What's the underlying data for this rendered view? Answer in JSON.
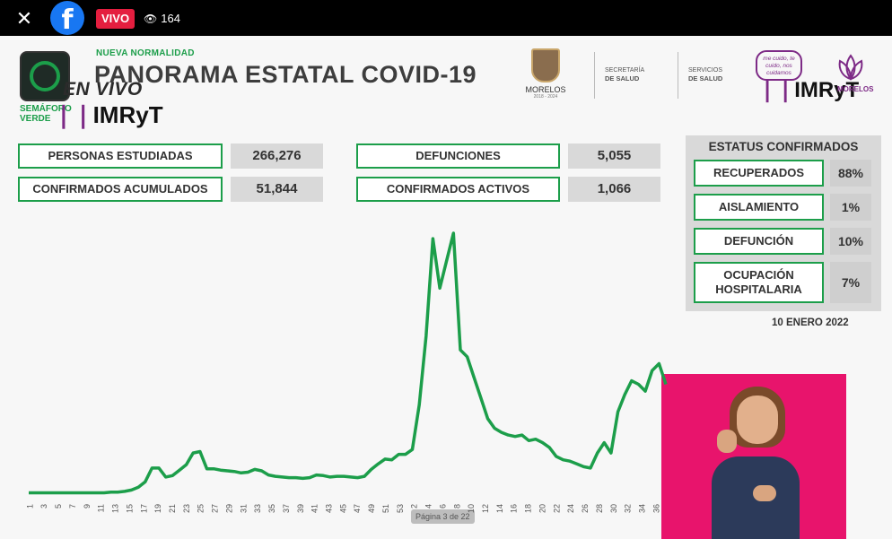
{
  "player": {
    "close_glyph": "✕",
    "fb_glyph": "f",
    "live_label": "VIVO",
    "viewer_icon": "eye-icon",
    "viewer_count": "164"
  },
  "header": {
    "subtitle": "NUEVA NORMALIDAD",
    "title": "PANORAMA ESTATAL COVID-19",
    "semaforo_text": "SEMÁFORO VERDE",
    "overlay_live": "EN VIVO",
    "imryt": "IMRyT",
    "morelos": "MORELOS",
    "morelos_years": "2018 - 2024",
    "secretaria": "SECRETARÍA",
    "secretaria_b": "DE SALUD",
    "servicios": "SERVICIOS",
    "servicios_b": "DE SALUD",
    "slogan": "me cuido, te cuido, nos cuidamos",
    "lotus_text": "MORELOS"
  },
  "stats": {
    "personas_label": "PERSONAS ESTUDIADAS",
    "personas_value": "266,276",
    "confirmados_label": "CONFIRMADOS ACUMULADOS",
    "confirmados_value": "51,844",
    "defunciones_label": "DEFUNCIONES",
    "defunciones_value": "5,055",
    "activos_label": "CONFIRMADOS ACTIVOS",
    "activos_value": "1,066"
  },
  "status": {
    "title": "ESTATUS CONFIRMADOS",
    "items": [
      {
        "label": "RECUPERADOS",
        "value": "88%"
      },
      {
        "label": "AISLAMIENTO",
        "value": "1%"
      },
      {
        "label": "DEFUNCIÓN",
        "value": "10%"
      },
      {
        "label": "OCUPACIÓN HOSPITALARIA",
        "value": "7%"
      }
    ],
    "date": "10 ENERO 2022"
  },
  "pager": "Página 3 de 22",
  "colors": {
    "accent": "#1c9e4a",
    "brand_purple": "#7d2a86",
    "live_red": "#e41e3f",
    "interpreter_bg": "#e8146c"
  },
  "chart_data": {
    "type": "line",
    "x_tick_labels": [
      "1",
      "3",
      "5",
      "7",
      "9",
      "11",
      "13",
      "15",
      "17",
      "19",
      "21",
      "23",
      "25",
      "27",
      "29",
      "31",
      "33",
      "35",
      "37",
      "39",
      "41",
      "43",
      "45",
      "47",
      "49",
      "51",
      "53",
      "2",
      "4",
      "6",
      "8",
      "10",
      "12",
      "14",
      "16",
      "18",
      "20",
      "22",
      "24",
      "26",
      "28",
      "30",
      "32",
      "34",
      "36"
    ],
    "series": [
      {
        "values": [
          2,
          2,
          2,
          2,
          2,
          2,
          2,
          2,
          2,
          2,
          2,
          2,
          3,
          3,
          4,
          6,
          10,
          18,
          38,
          38,
          25,
          27,
          35,
          43,
          60,
          62,
          37,
          37,
          35,
          34,
          33,
          31,
          32,
          36,
          34,
          28,
          26,
          25,
          24,
          24,
          23,
          24,
          28,
          27,
          25,
          26,
          26,
          25,
          24,
          26,
          36,
          44,
          51,
          50,
          58,
          58,
          65,
          130,
          230,
          372,
          300,
          340,
          380,
          210,
          200,
          170,
          140,
          110,
          96,
          90,
          86,
          84,
          86,
          78,
          80,
          75,
          68,
          55,
          50,
          48,
          44,
          40,
          38,
          60,
          75,
          60,
          120,
          145,
          165,
          160,
          150,
          180,
          190,
          160
        ]
      }
    ]
  }
}
